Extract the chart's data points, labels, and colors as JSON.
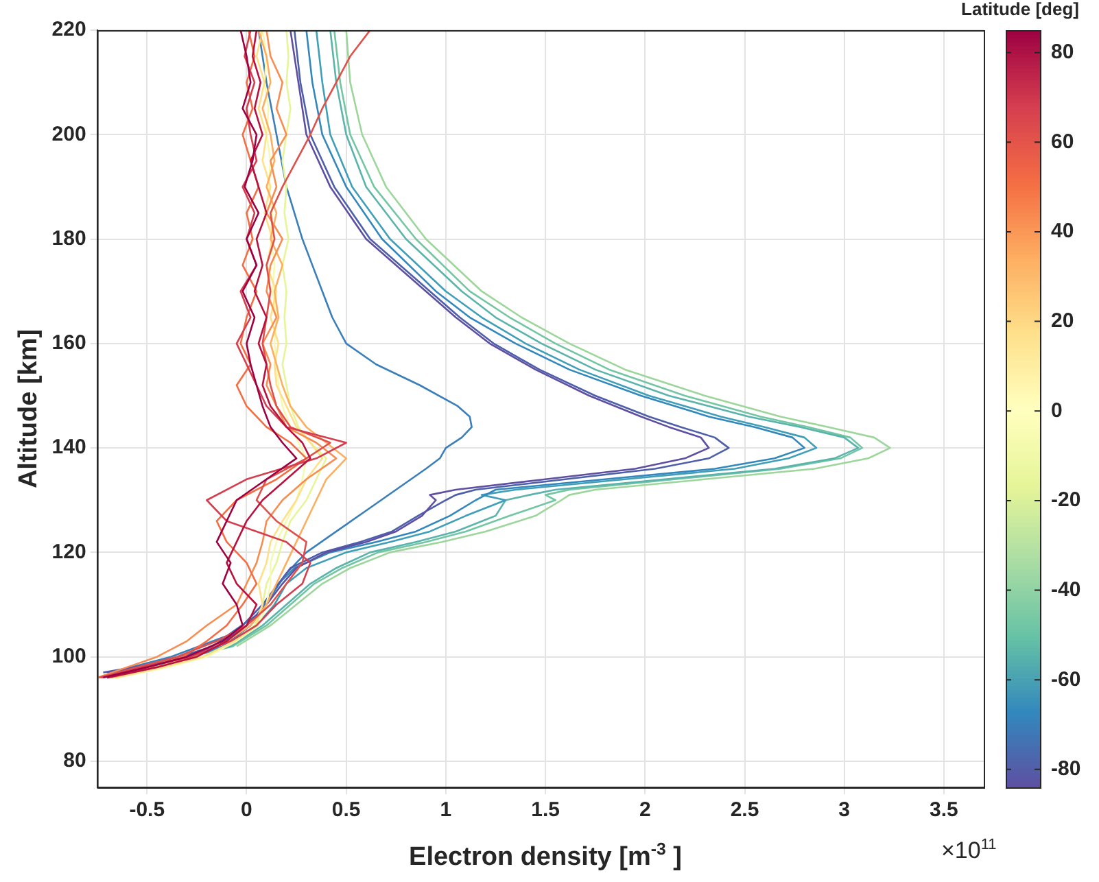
{
  "chart_data": {
    "type": "line",
    "xlabel": "Electron density [m$^{-3}$ ]",
    "ylabel": "Altitude [km]",
    "clabel": "Latitude [deg]",
    "xlim": [
      -0.75,
      3.7
    ],
    "ylim": [
      75,
      220
    ],
    "xticks": [
      -0.5,
      0,
      0.5,
      1,
      1.5,
      2,
      2.5,
      3,
      3.5
    ],
    "yticks": [
      80,
      100,
      120,
      140,
      160,
      180,
      200,
      220
    ],
    "clim": [
      -84,
      85
    ],
    "cticks": [
      -80,
      -60,
      -40,
      -20,
      0,
      20,
      40,
      60,
      80
    ],
    "grid": true,
    "marker": "none",
    "annotations": [
      "×10$^{11}$"
    ],
    "series": [
      {
        "color": "#9e0142",
        "x": [
          -0.72,
          -0.5,
          -0.3,
          -0.12,
          -0.02,
          -0.05,
          -0.12,
          -0.08,
          -0.15,
          -0.1,
          -0.05,
          0.1,
          0.25,
          0.18,
          0.12,
          0.08,
          0.05,
          0.02,
          0.0,
          0.04,
          -0.02,
          0.05,
          0.0,
          0.06,
          -0.01,
          0.03,
          0.05,
          -0.02,
          0.02,
          0.0,
          -0.03
        ],
        "values": [
          96,
          98,
          100,
          103,
          106,
          110,
          114,
          118,
          122,
          126,
          130,
          134,
          138,
          141,
          144,
          148,
          152,
          156,
          160,
          165,
          170,
          175,
          180,
          185,
          190,
          195,
          200,
          205,
          210,
          215,
          220
        ]
      },
      {
        "color": "#b8133f",
        "x": [
          -0.7,
          -0.45,
          -0.25,
          -0.1,
          0.0,
          0.05,
          -0.05,
          -0.1,
          -0.05,
          0.0,
          0.08,
          0.2,
          0.32,
          0.28,
          0.2,
          0.12,
          0.08,
          0.1,
          0.06,
          0.1,
          0.04,
          0.08,
          0.05,
          0.1,
          0.06,
          0.02,
          0.08,
          0.04,
          0.07,
          0.03,
          0.05
        ],
        "values": [
          96,
          98,
          100,
          103,
          106,
          110,
          114,
          118,
          122,
          126,
          130,
          134,
          138,
          141,
          144,
          148,
          152,
          156,
          160,
          165,
          170,
          175,
          180,
          185,
          190,
          195,
          200,
          205,
          210,
          215,
          220
        ]
      },
      {
        "color": "#d53e4f",
        "x": [
          -0.73,
          -0.52,
          -0.28,
          -0.08,
          0.05,
          0.15,
          0.28,
          0.32,
          0.2,
          -0.1,
          -0.2,
          0.0,
          0.35,
          0.5,
          0.2,
          0.1,
          0.05,
          0.0,
          -0.05,
          0.02,
          -0.03,
          0.05,
          0.0,
          0.04,
          -0.02,
          0.05,
          0.02,
          0.0,
          0.04,
          -0.01,
          0.02
        ],
        "values": [
          96,
          98,
          100,
          103,
          106,
          110,
          114,
          118,
          122,
          126,
          130,
          134,
          138,
          141,
          144,
          148,
          152,
          156,
          160,
          165,
          170,
          175,
          180,
          185,
          190,
          195,
          200,
          205,
          210,
          215,
          220
        ]
      },
      {
        "color": "#e0504a",
        "x": [
          -0.74,
          -0.55,
          -0.35,
          -0.15,
          0.0,
          0.12,
          0.2,
          0.28,
          0.3,
          0.15,
          0.05,
          0.1,
          0.3,
          0.42,
          0.22,
          0.15,
          0.12,
          0.1,
          0.08,
          0.1,
          0.12,
          0.1,
          0.14,
          0.12,
          0.18,
          0.25,
          0.32,
          0.38,
          0.45,
          0.52,
          0.62
        ],
        "values": [
          96,
          98,
          100,
          103,
          106,
          110,
          114,
          118,
          122,
          126,
          130,
          134,
          138,
          141,
          144,
          148,
          152,
          156,
          160,
          165,
          170,
          175,
          180,
          185,
          190,
          195,
          200,
          205,
          210,
          215,
          220
        ]
      },
      {
        "color": "#f46d43",
        "x": [
          -0.7,
          -0.5,
          -0.32,
          -0.2,
          -0.1,
          -0.02,
          0.05,
          0.0,
          -0.1,
          -0.15,
          -0.05,
          0.15,
          0.3,
          0.22,
          0.1,
          0.0,
          -0.05,
          0.02,
          -0.03,
          0.0,
          0.05,
          -0.02,
          0.03,
          0.0,
          0.06,
          0.02,
          -0.02,
          0.03,
          0.0,
          0.04,
          0.01
        ],
        "values": [
          96,
          98,
          100,
          103,
          106,
          110,
          114,
          118,
          122,
          126,
          130,
          134,
          138,
          141,
          144,
          148,
          152,
          156,
          160,
          165,
          170,
          175,
          180,
          185,
          190,
          195,
          200,
          205,
          210,
          215,
          220
        ]
      },
      {
        "color": "#f88d52",
        "x": [
          -0.75,
          -0.6,
          -0.45,
          -0.3,
          -0.2,
          -0.05,
          0.0,
          0.05,
          0.08,
          0.1,
          0.18,
          0.3,
          0.45,
          0.35,
          0.2,
          0.15,
          0.1,
          0.12,
          0.08,
          0.15,
          0.1,
          0.12,
          0.18,
          0.1,
          0.15,
          0.12,
          0.2,
          0.15,
          0.18,
          0.12,
          0.1
        ],
        "values": [
          96,
          98,
          100,
          103,
          106,
          110,
          114,
          118,
          122,
          126,
          130,
          134,
          138,
          141,
          144,
          148,
          152,
          156,
          160,
          165,
          170,
          175,
          180,
          185,
          190,
          195,
          200,
          205,
          210,
          215,
          220
        ]
      },
      {
        "color": "#fdae61",
        "x": [
          -0.68,
          -0.46,
          -0.26,
          -0.1,
          0.02,
          0.1,
          0.15,
          0.2,
          0.25,
          0.3,
          0.35,
          0.4,
          0.5,
          0.4,
          0.3,
          0.22,
          0.18,
          0.15,
          0.12,
          0.16,
          0.14,
          0.18,
          0.12,
          0.15,
          0.1,
          0.14,
          0.12,
          0.08,
          0.12,
          0.1,
          0.06
        ],
        "values": [
          96,
          98,
          100,
          103,
          106,
          110,
          114,
          118,
          122,
          126,
          130,
          134,
          138,
          141,
          144,
          148,
          152,
          156,
          160,
          165,
          170,
          175,
          180,
          185,
          190,
          195,
          200,
          205,
          210,
          215,
          220
        ]
      },
      {
        "color": "#fee08b",
        "x": [
          -0.66,
          -0.42,
          -0.22,
          -0.06,
          0.05,
          0.08,
          0.06,
          0.1,
          0.12,
          0.18,
          0.25,
          0.3,
          0.38,
          0.32,
          0.25,
          0.2,
          0.15,
          0.14,
          0.16,
          0.12,
          0.15,
          0.1,
          0.13,
          0.09,
          0.12,
          0.08,
          0.1,
          0.06,
          0.09,
          0.05,
          0.08
        ],
        "values": [
          96,
          98,
          100,
          103,
          106,
          110,
          114,
          118,
          122,
          126,
          130,
          134,
          138,
          141,
          144,
          148,
          152,
          156,
          160,
          165,
          170,
          175,
          180,
          185,
          190,
          195,
          200,
          205,
          210,
          215,
          220
        ]
      },
      {
        "color": "#f6fab0",
        "x": [
          -0.65,
          -0.4,
          -0.2,
          -0.05,
          0.06,
          0.1,
          0.12,
          0.12,
          0.15,
          0.2,
          0.25,
          0.28,
          0.3,
          0.26,
          0.22,
          0.18,
          0.16,
          0.15,
          0.14,
          0.15,
          0.13,
          0.14,
          0.12,
          0.13,
          0.11,
          0.12,
          0.1,
          0.11,
          0.09,
          0.1,
          0.08
        ],
        "values": [
          96,
          98,
          100,
          103,
          106,
          110,
          114,
          118,
          122,
          126,
          130,
          134,
          138,
          141,
          144,
          148,
          152,
          156,
          160,
          165,
          170,
          175,
          180,
          185,
          190,
          195,
          200,
          205,
          210,
          215,
          220
        ]
      },
      {
        "color": "#e6f598",
        "x": [
          -0.66,
          -0.41,
          -0.21,
          -0.06,
          0.04,
          0.08,
          0.1,
          0.15,
          0.18,
          0.22,
          0.3,
          0.35,
          0.4,
          0.32,
          0.26,
          0.22,
          0.2,
          0.18,
          0.2,
          0.19,
          0.2,
          0.18,
          0.21,
          0.19,
          0.2,
          0.18,
          0.2,
          0.22,
          0.2,
          0.21,
          0.2
        ],
        "values": [
          96,
          98,
          100,
          103,
          106,
          110,
          114,
          118,
          122,
          126,
          130,
          134,
          138,
          141,
          144,
          148,
          152,
          156,
          160,
          165,
          170,
          175,
          180,
          185,
          190,
          195,
          200,
          205,
          210,
          215,
          220
        ]
      },
      {
        "color": "#5e4fa2",
        "x": [
          -0.7,
          -0.4,
          -0.15,
          0.0,
          0.1,
          0.18,
          0.25,
          0.4,
          0.6,
          0.75,
          0.88,
          0.95,
          0.92,
          1.05,
          1.5,
          1.95,
          2.2,
          2.32,
          2.28,
          2.12,
          1.98,
          1.72,
          1.45,
          1.22,
          1.05,
          0.9,
          0.6,
          0.42,
          0.3,
          0.26,
          0.22
        ],
        "values": [
          97,
          99,
          102,
          106,
          110,
          114,
          117,
          120,
          122,
          124,
          127,
          130,
          131,
          132,
          134,
          136,
          138,
          140,
          142,
          144,
          146,
          150,
          155,
          160,
          165,
          170,
          180,
          190,
          200,
          210,
          220
        ]
      },
      {
        "color": "#4d5fab",
        "x": [
          -0.72,
          -0.42,
          -0.17,
          -0.02,
          0.08,
          0.16,
          0.22,
          0.38,
          0.57,
          0.73,
          0.86,
          1.0,
          1.05,
          1.15,
          1.6,
          2.05,
          2.32,
          2.42,
          2.35,
          2.18,
          2.02,
          1.75,
          1.47,
          1.24,
          1.07,
          0.92,
          0.62,
          0.44,
          0.32,
          0.27,
          0.24
        ],
        "values": [
          97,
          99,
          102,
          106,
          110,
          114,
          117,
          120,
          122,
          124,
          127,
          130,
          131,
          132,
          134,
          136,
          138,
          140,
          142,
          144,
          146,
          150,
          155,
          160,
          165,
          170,
          180,
          190,
          200,
          210,
          220
        ]
      },
      {
        "color": "#3288bd",
        "x": [
          -0.68,
          -0.38,
          -0.12,
          0.02,
          0.1,
          0.16,
          0.24,
          0.42,
          0.65,
          0.85,
          1.02,
          1.15,
          1.2,
          1.25,
          1.8,
          2.35,
          2.65,
          2.8,
          2.74,
          2.55,
          2.32,
          1.98,
          1.62,
          1.35,
          1.12,
          0.95,
          0.68,
          0.5,
          0.38,
          0.33,
          0.3
        ],
        "values": [
          97,
          99,
          102,
          106,
          110,
          114,
          117,
          120,
          122,
          124,
          127,
          130,
          131,
          132,
          134,
          136,
          138,
          140,
          142,
          144,
          146,
          150,
          155,
          160,
          165,
          170,
          180,
          190,
          200,
          210,
          220
        ]
      },
      {
        "color": "#3f9fb8",
        "x": [
          -0.66,
          -0.36,
          -0.1,
          0.05,
          0.14,
          0.2,
          0.3,
          0.5,
          0.72,
          0.92,
          1.1,
          1.3,
          1.18,
          1.35,
          1.9,
          2.45,
          2.72,
          2.86,
          2.8,
          2.6,
          2.38,
          2.02,
          1.67,
          1.4,
          1.18,
          1.0,
          0.72,
          0.53,
          0.42,
          0.38,
          0.35
        ],
        "values": [
          97,
          99,
          102,
          106,
          110,
          114,
          117,
          120,
          122,
          124,
          127,
          130,
          131,
          132,
          134,
          136,
          138,
          140,
          142,
          144,
          146,
          150,
          155,
          160,
          165,
          170,
          180,
          190,
          200,
          210,
          220
        ]
      },
      {
        "color": "#5ab4ac",
        "x": [
          -0.64,
          null,
          -0.08,
          0.08,
          0.2,
          0.32,
          0.45,
          0.62,
          0.85,
          1.05,
          1.25,
          1.3,
          1.42,
          1.55,
          2.1,
          2.65,
          2.95,
          3.07,
          3.0,
          2.78,
          2.52,
          2.12,
          1.75,
          1.48,
          1.25,
          1.08,
          0.8,
          0.6,
          0.5,
          0.45,
          0.42
        ],
        "values": [
          97,
          null,
          102,
          106,
          110,
          114,
          117,
          120,
          122,
          124,
          127,
          130,
          131,
          132,
          134,
          136,
          138,
          140,
          142,
          144,
          146,
          150,
          155,
          160,
          165,
          170,
          180,
          190,
          200,
          210,
          220
        ]
      },
      {
        "color": "#73c6a4",
        "x": [
          -0.63,
          null,
          -0.07,
          0.1,
          0.22,
          0.34,
          0.48,
          0.66,
          0.9,
          1.1,
          1.32,
          1.55,
          1.5,
          1.62,
          2.15,
          2.68,
          2.98,
          3.09,
          3.03,
          2.82,
          2.58,
          2.2,
          1.82,
          1.55,
          1.32,
          1.12,
          0.85,
          0.64,
          0.52,
          0.47,
          0.44
        ],
        "values": [
          97,
          null,
          102,
          106,
          110,
          114,
          117,
          120,
          122,
          124,
          127,
          130,
          131,
          132,
          134,
          136,
          138,
          140,
          142,
          144,
          146,
          150,
          155,
          160,
          165,
          170,
          180,
          190,
          200,
          210,
          220
        ]
      },
      {
        "color": "#9dd69b",
        "x": [
          null,
          null,
          -0.05,
          0.12,
          0.25,
          0.38,
          0.52,
          0.72,
          0.98,
          1.2,
          1.45,
          1.58,
          1.62,
          1.75,
          2.3,
          2.85,
          3.12,
          3.23,
          3.15,
          2.92,
          2.68,
          2.3,
          1.9,
          1.62,
          1.38,
          1.18,
          0.9,
          0.7,
          0.58,
          0.52,
          0.5
        ],
        "values": [
          null,
          null,
          102,
          106,
          110,
          114,
          117,
          120,
          122,
          124,
          127,
          130,
          131,
          132,
          134,
          136,
          138,
          140,
          142,
          144,
          146,
          150,
          155,
          160,
          165,
          170,
          180,
          190,
          200,
          210,
          220
        ]
      },
      {
        "color": "#3b7fba",
        "x": [
          -0.68,
          -0.38,
          -0.1,
          0.05,
          0.13,
          0.2,
          0.3,
          0.45,
          0.6,
          0.75,
          0.9,
          0.97,
          1.0,
          1.08,
          1.13,
          1.12,
          1.06,
          0.87,
          0.65,
          0.5,
          0.43,
          0.38,
          0.33,
          0.28,
          0.2,
          0.15,
          0.1,
          0.06
        ],
        "values": [
          97,
          100,
          104,
          108,
          112,
          116,
          120,
          124,
          128,
          132,
          136,
          138,
          140,
          142,
          144,
          146,
          148,
          152,
          156,
          160,
          165,
          170,
          175,
          180,
          190,
          200,
          210,
          220
        ]
      }
    ]
  }
}
